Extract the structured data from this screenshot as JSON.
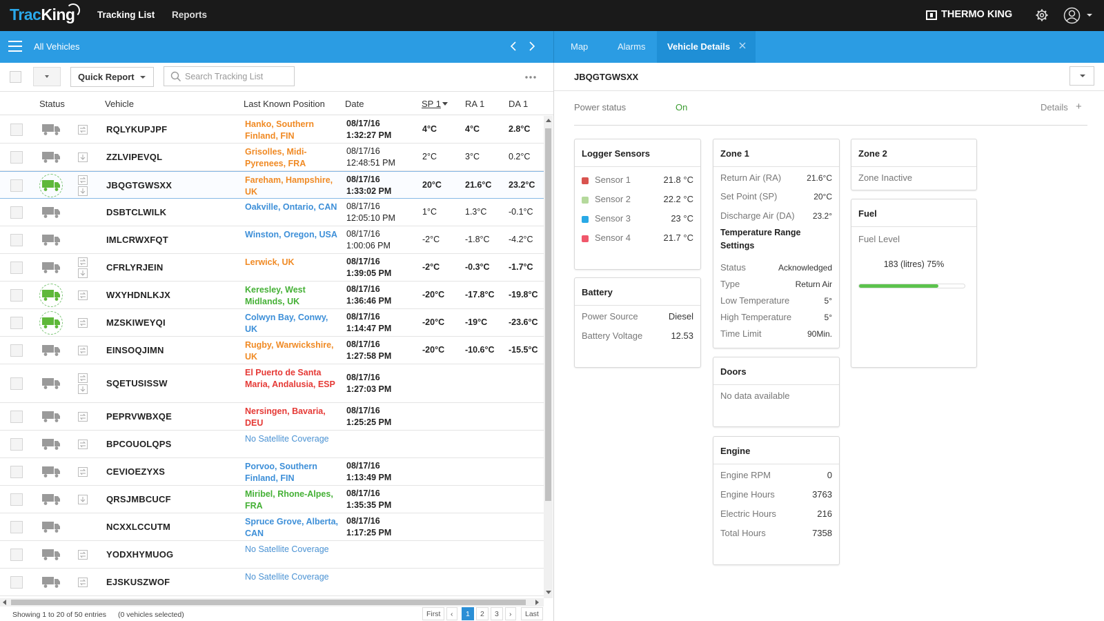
{
  "topbar": {
    "logo": {
      "part1": "Trac",
      "part2": "King"
    },
    "nav": {
      "tracking_list": "Tracking List",
      "reports": "Reports"
    },
    "brand": "THERMO KING",
    "icons": {
      "settings": "gear-icon",
      "user": "user-icon",
      "caret": "chevron-down-icon"
    }
  },
  "subbar": {
    "title": "All Vehicles",
    "tabs": {
      "map": "Map",
      "alarms": "Alarms",
      "vehicle_details": "Vehicle Details"
    }
  },
  "toolbar": {
    "quick_report": "Quick Report",
    "search_placeholder": "Search Tracking List"
  },
  "table": {
    "headers": {
      "status": "Status",
      "vehicle": "Vehicle",
      "last_known_position": "Last Known Position",
      "date": "Date",
      "sp1": "SP 1",
      "ra1": "RA 1",
      "da1": "DA 1"
    },
    "rows": [
      {
        "vehicle": "RQLYKUPJPF",
        "pos": "Hanko, Southern Finland, FIN",
        "pos_color": "#f08a24",
        "date1": "08/17/16",
        "date2": "1:32:27 PM",
        "sp": "4°C",
        "ra": "4°C",
        "da": "2.8°C",
        "bold": true,
        "truck": "grey",
        "doc": "sync"
      },
      {
        "vehicle": "ZZLVIPEVQL",
        "pos": "Grisolles, Midi-Pyrenees, FRA",
        "pos_color": "#f08a24",
        "date1": "08/17/16",
        "date2": "12:48:51 PM",
        "sp": "2°C",
        "ra": "3°C",
        "da": "0.2°C",
        "bold": false,
        "truck": "grey",
        "doc": "down"
      },
      {
        "vehicle": "JBQGTGWSXX",
        "pos": "Fareham, Hampshire, UK",
        "pos_color": "#f08a24",
        "date1": "08/17/16",
        "date2": "1:33:02 PM",
        "sp": "20°C",
        "ra": "21.6°C",
        "da": "23.2°C",
        "bold": true,
        "truck": "green",
        "doc": "both",
        "selected": true
      },
      {
        "vehicle": "DSBTCLWILK",
        "pos": "Oakville, Ontario, CAN",
        "pos_color": "#3d8fd8",
        "date1": "08/17/16",
        "date2": "12:05:10 PM",
        "sp": "1°C",
        "ra": "1.3°C",
        "da": "-0.1°C",
        "bold": false,
        "truck": "grey",
        "doc": ""
      },
      {
        "vehicle": "IMLCRWXFQT",
        "pos": "Winston, Oregon, USA",
        "pos_color": "#3d8fd8",
        "date1": "08/17/16",
        "date2": "1:00:06 PM",
        "sp": "-2°C",
        "ra": "-1.8°C",
        "da": "-4.2°C",
        "bold": false,
        "truck": "grey",
        "doc": ""
      },
      {
        "vehicle": "CFRLYRJEIN",
        "pos": "Lerwick, UK",
        "pos_color": "#f08a24",
        "date1": "08/17/16",
        "date2": "1:39:05 PM",
        "sp": "-2°C",
        "ra": "-0.3°C",
        "da": "-1.7°C",
        "bold": true,
        "truck": "grey",
        "doc": "both"
      },
      {
        "vehicle": "WXYHDNLKJX",
        "pos": "Keresley, West Midlands, UK",
        "pos_color": "#44b035",
        "date1": "08/17/16",
        "date2": "1:36:46 PM",
        "sp": "-20°C",
        "ra": "-17.8°C",
        "da": "-19.8°C",
        "bold": true,
        "truck": "green",
        "doc": "sync"
      },
      {
        "vehicle": "MZSKIWEYQI",
        "pos": "Colwyn Bay, Conwy, UK",
        "pos_color": "#3d8fd8",
        "date1": "08/17/16",
        "date2": "1:14:47 PM",
        "sp": "-20°C",
        "ra": "-19°C",
        "da": "-23.6°C",
        "bold": true,
        "truck": "green",
        "doc": "sync"
      },
      {
        "vehicle": "EINSOQJIMN",
        "pos": "Rugby, Warwickshire, UK",
        "pos_color": "#f08a24",
        "date1": "08/17/16",
        "date2": "1:27:58 PM",
        "sp": "-20°C",
        "ra": "-10.6°C",
        "da": "-15.5°C",
        "bold": true,
        "truck": "grey",
        "doc": "sync"
      },
      {
        "vehicle": "SQETUSISSW",
        "pos": "El Puerto de Santa Maria, Andalusia, ESP",
        "pos_color": "#e53935",
        "date1": "08/17/16",
        "date2": "1:27:03 PM",
        "sp": "",
        "ra": "",
        "da": "",
        "bold": true,
        "truck": "grey",
        "doc": "both"
      },
      {
        "vehicle": "PEPRVWBXQE",
        "pos": "Nersingen, Bavaria, DEU",
        "pos_color": "#e53935",
        "date1": "08/17/16",
        "date2": "1:25:25 PM",
        "sp": "",
        "ra": "",
        "da": "",
        "bold": true,
        "truck": "grey",
        "doc": "sync"
      },
      {
        "vehicle": "BPCOUOLQPS",
        "pos": "No Satellite Coverage",
        "pos_color": "#4a92d3",
        "date1": "",
        "date2": "",
        "sp": "",
        "ra": "",
        "da": "",
        "bold": true,
        "truck": "grey",
        "doc": "sync",
        "nosat": true
      },
      {
        "vehicle": "CEVIOEZYXS",
        "pos": "Porvoo, Southern Finland, FIN",
        "pos_color": "#3d8fd8",
        "date1": "08/17/16",
        "date2": "1:13:49 PM",
        "sp": "",
        "ra": "",
        "da": "",
        "bold": true,
        "truck": "grey",
        "doc": "sync"
      },
      {
        "vehicle": "QRSJMBCUCF",
        "pos": "Miribel, Rhone-Alpes, FRA",
        "pos_color": "#44b035",
        "date1": "08/17/16",
        "date2": "1:35:35 PM",
        "sp": "",
        "ra": "",
        "da": "",
        "bold": true,
        "truck": "grey",
        "doc": "down"
      },
      {
        "vehicle": "NCXXLCCUTM",
        "pos": "Spruce Grove, Alberta, CAN",
        "pos_color": "#3d8fd8",
        "date1": "08/17/16",
        "date2": "1:17:25 PM",
        "sp": "",
        "ra": "",
        "da": "",
        "bold": true,
        "truck": "grey",
        "doc": ""
      },
      {
        "vehicle": "YODXHYMUOG",
        "pos": "No Satellite Coverage",
        "pos_color": "#4a92d3",
        "date1": "",
        "date2": "",
        "sp": "",
        "ra": "",
        "da": "",
        "bold": true,
        "truck": "grey",
        "doc": "sync",
        "nosat": true
      },
      {
        "vehicle": "EJSKUSZWOF",
        "pos": "No Satellite Coverage",
        "pos_color": "#4a92d3",
        "date1": "",
        "date2": "",
        "sp": "",
        "ra": "",
        "da": "",
        "bold": true,
        "truck": "grey",
        "doc": "sync",
        "nosat": true
      }
    ]
  },
  "footer": {
    "showing": "Showing 1 to 20 of 50 entries",
    "selected": "(0 vehicles selected)",
    "pagination": [
      "First",
      "‹",
      "1",
      "2",
      "3",
      "›",
      "Last"
    ],
    "active_page": "1"
  },
  "details": {
    "title": "JBQGTGWSXX",
    "power_status_label": "Power status",
    "power_status_value": "On",
    "details_link": "Details",
    "logger": {
      "title": "Logger Sensors",
      "sensors": [
        {
          "name": "Sensor 1",
          "value": "21.8 °C",
          "color": "#d9534f"
        },
        {
          "name": "Sensor 2",
          "value": "22.2 °C",
          "color": "#b5d99c"
        },
        {
          "name": "Sensor 3",
          "value": "23 °C",
          "color": "#29a9e6"
        },
        {
          "name": "Sensor 4",
          "value": "21.7 °C",
          "color": "#f0576b"
        }
      ]
    },
    "battery": {
      "title": "Battery",
      "power_source_label": "Power Source",
      "power_source_value": "Diesel",
      "voltage_label": "Battery Voltage",
      "voltage_value": "12.53"
    },
    "zone1": {
      "title": "Zone 1",
      "ra_label": "Return Air (RA)",
      "ra_value": "21.6°C",
      "sp_label": "Set Point (SP)",
      "sp_value": "20°C",
      "da_label": "Discharge Air (DA)",
      "da_value": "23.2°",
      "trs_label": "Temperature Range Settings",
      "status_label": "Status",
      "status_value": "Acknowledged",
      "type_label": "Type",
      "type_value": "Return Air",
      "low_label": "Low Temperature",
      "low_value": "5°",
      "high_label": "High Temperature",
      "high_value": "5°",
      "time_label": "Time Limit",
      "time_value": "90Min."
    },
    "zone2": {
      "title": "Zone 2",
      "status": "Zone Inactive"
    },
    "fuel": {
      "title": "Fuel",
      "level_label": "Fuel Level",
      "level_text": "183 (litres) 75%",
      "level_fraction": 0.75,
      "color": "#5cc34d"
    },
    "doors": {
      "title": "Doors",
      "message": "No data available"
    },
    "engine": {
      "title": "Engine",
      "rpm_label": "Engine RPM",
      "rpm_value": "0",
      "hours_label": "Engine Hours",
      "hours_value": "3763",
      "electric_label": "Electric Hours",
      "electric_value": "216",
      "total_label": "Total Hours",
      "total_value": "7358"
    }
  },
  "colors": {
    "topbar": "#1a1a1a",
    "blue": "#2b9ce3",
    "active_tab": "#1f8fd6",
    "truck_grey": "#9a9a9a",
    "truck_green": "#5fb83a"
  }
}
